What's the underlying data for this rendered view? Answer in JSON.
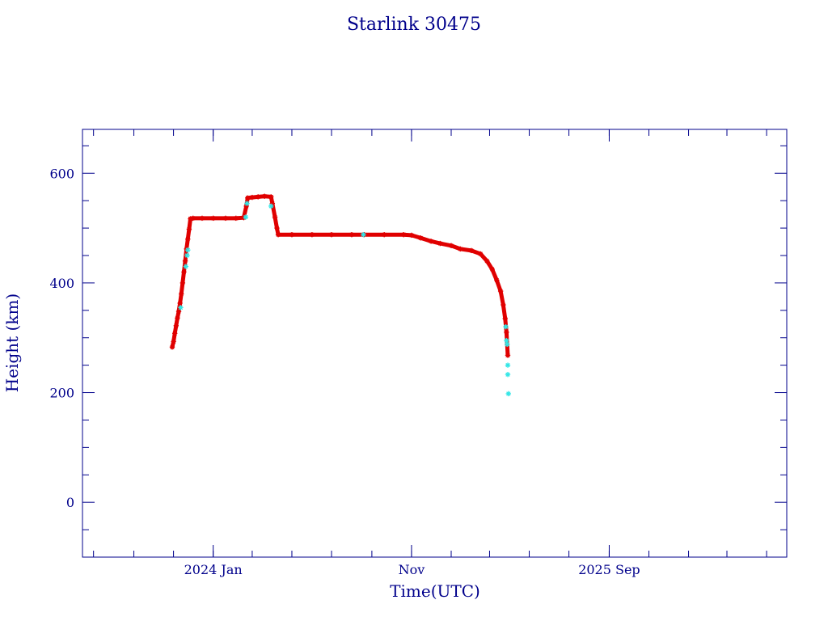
{
  "chart_data": {
    "type": "scatter",
    "title": "Starlink 30475",
    "xlabel": "Time(UTC)",
    "ylabel": "Height (km)",
    "x_unit": "date",
    "xlim": [
      "2023-06-14",
      "2026-06-01"
    ],
    "ylim": [
      -100,
      680
    ],
    "x_ticks": [
      {
        "date": "2024-01-01",
        "label": "2024 Jan"
      },
      {
        "date": "2024-11-01",
        "label": "Nov"
      },
      {
        "date": "2025-09-01",
        "label": "2025 Sep"
      }
    ],
    "y_ticks": [
      0,
      200,
      400,
      600
    ],
    "grid": false,
    "colors": {
      "axes": "#00008b",
      "points_primary": "#e00000",
      "points_secondary": "#33e6e6",
      "line": "#000000"
    },
    "series": [
      {
        "color": "#e00000",
        "marker": "asterisk",
        "points": [
          [
            "2023-10-30",
            283
          ],
          [
            "2023-11-01",
            293
          ],
          [
            "2023-11-03",
            308
          ],
          [
            "2023-11-05",
            322
          ],
          [
            "2023-11-07",
            336
          ],
          [
            "2023-11-09",
            348
          ],
          [
            "2023-11-11",
            363
          ],
          [
            "2023-11-13",
            380
          ],
          [
            "2023-11-15",
            400
          ],
          [
            "2023-11-17",
            420
          ],
          [
            "2023-11-19",
            440
          ],
          [
            "2023-11-21",
            462
          ],
          [
            "2023-11-23",
            480
          ],
          [
            "2023-11-25",
            498
          ],
          [
            "2023-11-27",
            517
          ],
          [
            "2023-12-01",
            518
          ],
          [
            "2023-12-15",
            518
          ],
          [
            "2024-01-01",
            518
          ],
          [
            "2024-01-20",
            518
          ],
          [
            "2024-02-05",
            518
          ],
          [
            "2024-02-17",
            519
          ],
          [
            "2024-02-21",
            540
          ],
          [
            "2024-02-23",
            555
          ],
          [
            "2024-03-01",
            556
          ],
          [
            "2024-03-10",
            557
          ],
          [
            "2024-03-20",
            558
          ],
          [
            "2024-03-30",
            557
          ],
          [
            "2024-04-01",
            545
          ],
          [
            "2024-04-05",
            520
          ],
          [
            "2024-04-08",
            500
          ],
          [
            "2024-04-10",
            488
          ],
          [
            "2024-05-01",
            488
          ],
          [
            "2024-06-01",
            488
          ],
          [
            "2024-07-01",
            488
          ],
          [
            "2024-08-01",
            488
          ],
          [
            "2024-08-20",
            488
          ],
          [
            "2024-09-20",
            488
          ],
          [
            "2024-10-20",
            488
          ],
          [
            "2024-11-01",
            487
          ],
          [
            "2024-11-15",
            482
          ],
          [
            "2024-12-01",
            476
          ],
          [
            "2024-12-15",
            472
          ],
          [
            "2025-01-01",
            468
          ],
          [
            "2025-01-15",
            462
          ],
          [
            "2025-02-01",
            459
          ],
          [
            "2025-02-15",
            453
          ],
          [
            "2025-02-25",
            440
          ],
          [
            "2025-03-05",
            425
          ],
          [
            "2025-03-12",
            405
          ],
          [
            "2025-03-18",
            385
          ],
          [
            "2025-03-22",
            360
          ],
          [
            "2025-03-25",
            335
          ],
          [
            "2025-03-27",
            310
          ],
          [
            "2025-03-29",
            268
          ]
        ]
      },
      {
        "color": "#33e6e6",
        "marker": "asterisk",
        "points": [
          [
            "2023-11-12",
            355
          ],
          [
            "2023-11-20",
            430
          ],
          [
            "2023-11-22",
            450
          ],
          [
            "2023-11-23",
            460
          ],
          [
            "2024-02-20",
            520
          ],
          [
            "2024-02-22",
            545
          ],
          [
            "2024-03-30",
            540
          ],
          [
            "2024-08-19",
            488
          ],
          [
            "2025-03-26",
            320
          ],
          [
            "2025-03-27",
            295
          ],
          [
            "2025-03-28",
            288
          ],
          [
            "2025-03-29",
            250
          ],
          [
            "2025-03-29",
            233
          ],
          [
            "2025-03-30",
            198
          ]
        ]
      }
    ]
  }
}
